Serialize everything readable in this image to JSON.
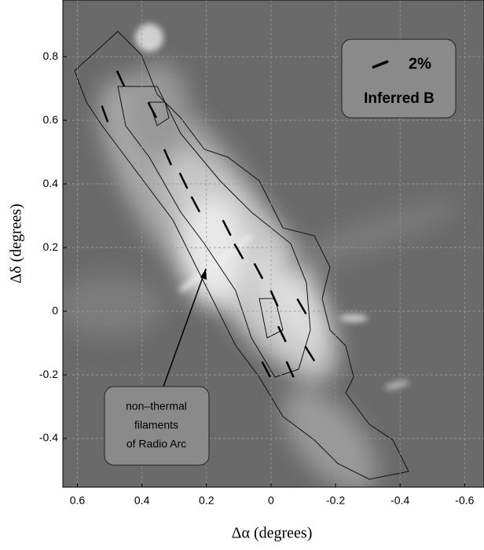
{
  "chart_data": {
    "type": "image-vectors",
    "xlabel": "Δα (degrees)",
    "ylabel": "Δδ (degrees)",
    "xlim": [
      0.645,
      -0.66
    ],
    "ylim": [
      -0.553,
      0.978
    ],
    "xticks": [
      0.6,
      0.4,
      0.2,
      0,
      -0.2,
      -0.4,
      -0.6
    ],
    "yticks": [
      0.8,
      0.6,
      0.4,
      0.2,
      0,
      -0.2,
      -0.4
    ],
    "grid": true,
    "vectors": {
      "color": "#000000",
      "x": [
        0.466,
        0.515,
        0.368,
        0.32,
        0.271,
        0.234,
        0.137,
        0.1,
        0.039,
        -0.01,
        -0.095,
        -0.034,
        -0.059,
        0.015,
        -0.12
      ],
      "y": [
        0.731,
        0.62,
        0.632,
        0.484,
        0.41,
        0.336,
        0.262,
        0.188,
        0.126,
        0.04,
        0.015,
        -0.072,
        -0.183,
        -0.183,
        -0.133
      ],
      "angle_deg": [
        65,
        70,
        62,
        66,
        64,
        62,
        63,
        60,
        62,
        66,
        60,
        64,
        66,
        62,
        58
      ]
    },
    "legend": {
      "scale": "2%",
      "label": "Inferred B"
    },
    "annotation": [
      "non–thermal",
      "filaments",
      "of Radio Arc"
    ]
  }
}
